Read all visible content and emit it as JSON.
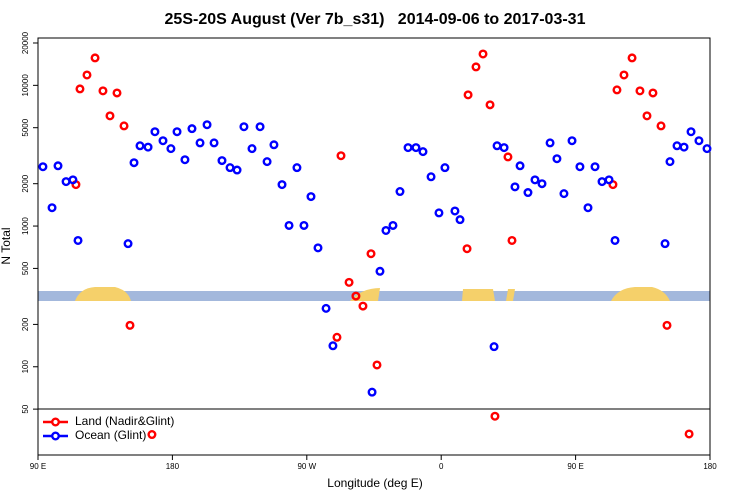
{
  "chart_data": {
    "type": "scatter",
    "title": "25S-20S August (Ver 7b_s31)   2014-09-06 to 2017-03-31",
    "x_label": "Longitude (deg E)",
    "y_label": "N Total",
    "log_y": true,
    "legend": "bottom-left",
    "xlim": [
      90,
      540
    ],
    "xticks": [
      {
        "value": 90,
        "label": "90 E"
      },
      180,
      {
        "value": 270,
        "label": "90 W"
      },
      {
        "value": 360,
        "label": "0"
      },
      {
        "value": 450,
        "label": "90 E"
      },
      {
        "value": 540,
        "label": "180"
      }
    ],
    "ylim": [
      23.6,
      21700
    ],
    "yticks": [
      50,
      100,
      200,
      500,
      1000,
      2000,
      5000,
      10000,
      20000
    ],
    "series": [
      {
        "name": "Land (Nadir&Glint)",
        "color": "#ff0000",
        "x": [
          115.4,
          118.1,
          122.8,
          128.2,
          133.5,
          138.2,
          142.9,
          147.6,
          151.6,
          166.3,
          290.2,
          292.9,
          298.3,
          302.9,
          307.6,
          313.0,
          317.0,
          377.3,
          378.0,
          383.3,
          388.0,
          392.7,
          396.0,
          404.7,
          407.4,
          475.0,
          477.7,
          482.4,
          487.8,
          493.1,
          497.8,
          501.8,
          507.2,
          511.2,
          526.0
        ],
        "values": [
          1970,
          9430,
          11850,
          15660,
          9140,
          6070,
          8830,
          5150,
          197,
          33,
          162,
          3160,
          398,
          318,
          270,
          636,
          103,
          690,
          8560,
          13520,
          16710,
          7270,
          44.5,
          3100,
          790,
          1970,
          9280,
          11850,
          15660,
          9140,
          6070,
          8830,
          5150,
          197,
          33.3
        ]
      },
      {
        "name": "Ocean (Glint)",
        "color": "#0000ff",
        "x": [
          93.3,
          99.4,
          103.4,
          108.8,
          113.4,
          116.8,
          150.3,
          154.3,
          158.3,
          163.7,
          168.3,
          173.7,
          179.0,
          183.1,
          188.4,
          193.1,
          198.5,
          203.2,
          207.9,
          213.2,
          218.6,
          223.3,
          227.9,
          233.3,
          238.7,
          243.4,
          248.0,
          253.4,
          258.1,
          263.4,
          268.1,
          272.8,
          277.5,
          282.9,
          287.5,
          313.7,
          319.0,
          323.0,
          327.7,
          332.4,
          337.8,
          343.1,
          347.8,
          353.2,
          358.5,
          362.5,
          369.2,
          372.6,
          395.4,
          397.4,
          402.1,
          409.4,
          412.8,
          418.1,
          422.8,
          427.5,
          432.9,
          437.5,
          442.2,
          447.6,
          452.9,
          458.3,
          463.0,
          467.7,
          472.4,
          476.4,
          509.9,
          513.2,
          517.9,
          522.6,
          527.3,
          532.6,
          538.0
        ],
        "values": [
          2640,
          1350,
          2680,
          2070,
          2130,
          790,
          750,
          2820,
          3720,
          3640,
          4680,
          4040,
          3550,
          4680,
          2960,
          4920,
          3900,
          5250,
          3900,
          2920,
          2600,
          2500,
          5080,
          3550,
          5080,
          2870,
          3780,
          1970,
          1010,
          2600,
          1010,
          1620,
          700,
          260,
          141,
          66,
          477,
          930,
          1010,
          1760,
          3610,
          3610,
          3380,
          2240,
          1240,
          2600,
          1280,
          1110,
          139,
          3720,
          3610,
          1900,
          2680,
          1730,
          2130,
          2000,
          3900,
          3010,
          1700,
          4040,
          2640,
          1350,
          2640,
          2070,
          2130,
          790,
          750,
          2870,
          3720,
          3640,
          4680,
          4040,
          3550
        ]
      }
    ]
  }
}
